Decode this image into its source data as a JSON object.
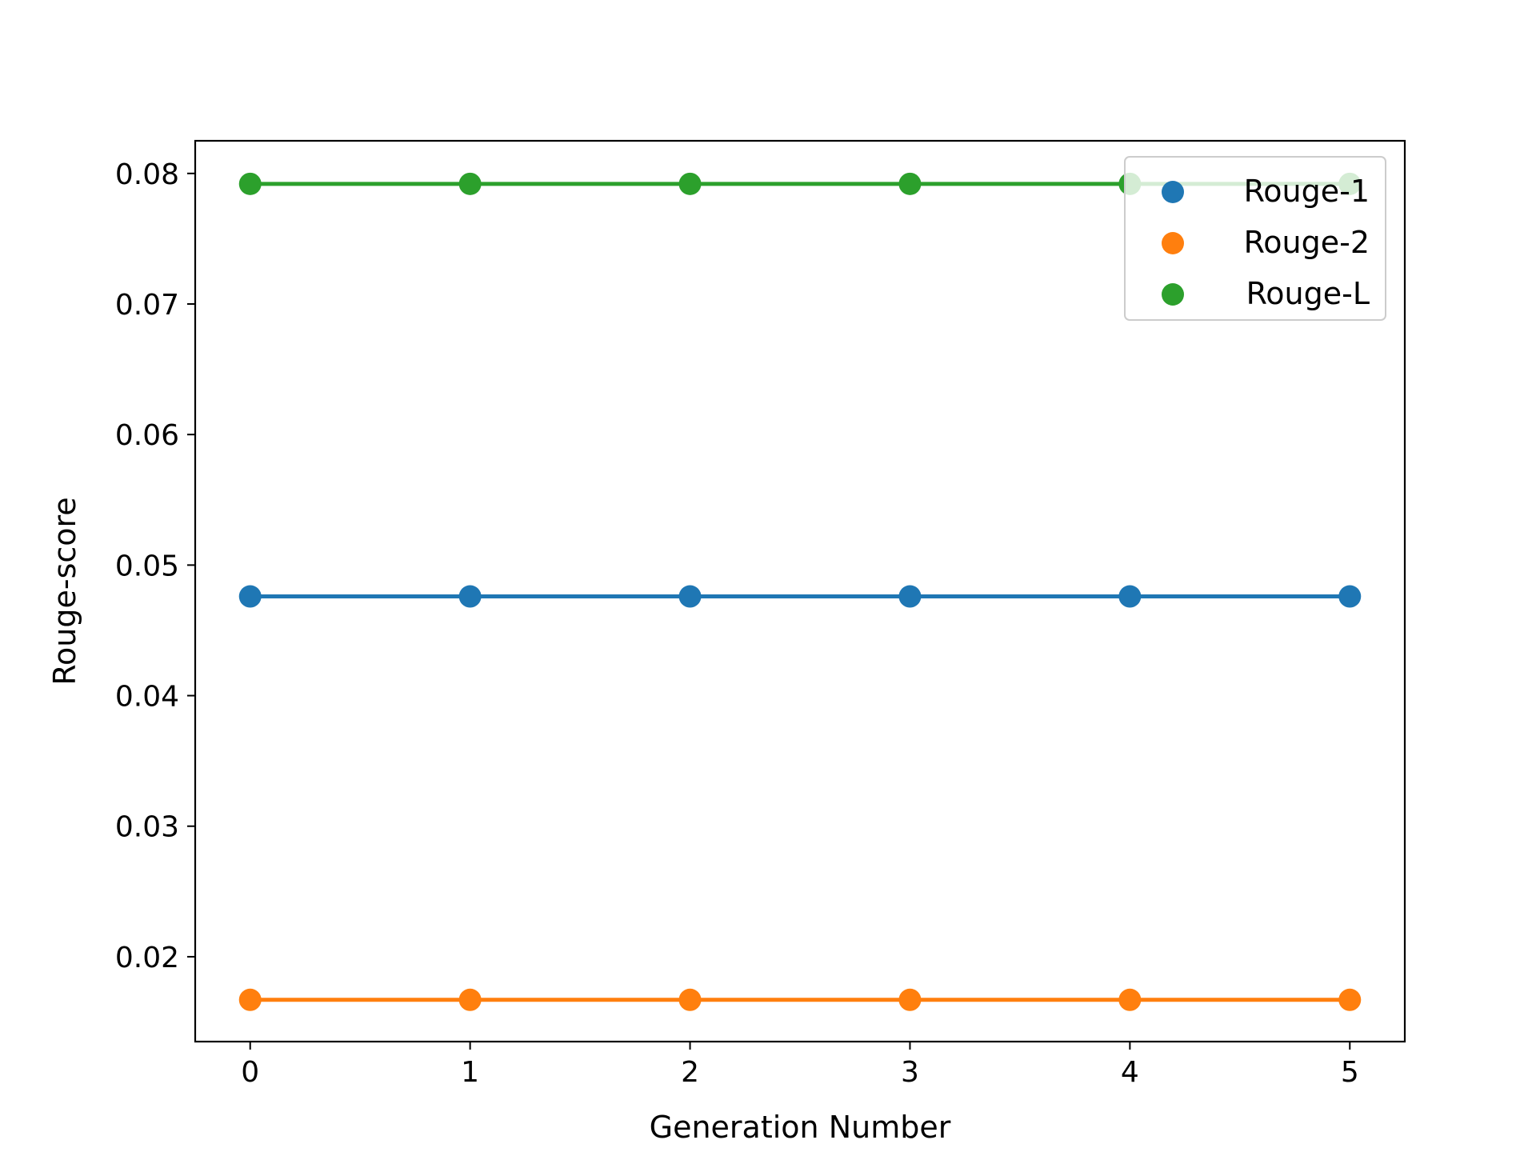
{
  "chart_data": {
    "type": "line",
    "title": "",
    "xlabel": "Generation Number",
    "ylabel": "Rouge-score",
    "x": [
      0,
      1,
      2,
      3,
      4,
      5
    ],
    "xlim": [
      -0.25,
      5.25
    ],
    "ylim": [
      0.0135,
      0.0825
    ],
    "xticks": [
      0,
      1,
      2,
      3,
      4,
      5
    ],
    "yticks": [
      0.02,
      0.03,
      0.04,
      0.05,
      0.06,
      0.07,
      0.08
    ],
    "ytick_labels": [
      "0.02",
      "0.03",
      "0.04",
      "0.05",
      "0.06",
      "0.07",
      "0.08"
    ],
    "grid": false,
    "legend_position": "top-right",
    "series": [
      {
        "name": "Rouge-1",
        "color": "#1f77b4",
        "values": [
          0.0476,
          0.0476,
          0.0476,
          0.0476,
          0.0476,
          0.0476
        ]
      },
      {
        "name": "Rouge-2",
        "color": "#ff7f0e",
        "values": [
          0.0167,
          0.0167,
          0.0167,
          0.0167,
          0.0167,
          0.0167
        ]
      },
      {
        "name": "Rouge-L",
        "color": "#2ca02c",
        "values": [
          0.0792,
          0.0792,
          0.0792,
          0.0792,
          0.0792,
          0.0792
        ]
      }
    ]
  }
}
